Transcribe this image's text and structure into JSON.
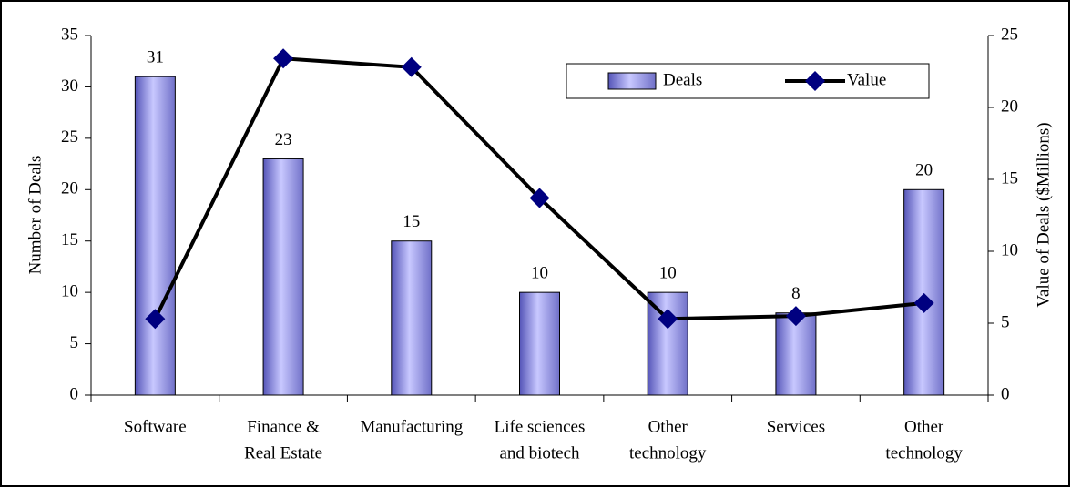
{
  "chart_data": {
    "type": "bar-line",
    "categories": [
      [
        "Software"
      ],
      [
        "Finance &",
        "Real Estate"
      ],
      [
        "Manufacturing"
      ],
      [
        "Life sciences",
        "and biotech"
      ],
      [
        "Other",
        "technology"
      ],
      [
        "Services"
      ],
      [
        "Other",
        "technology"
      ]
    ],
    "series": [
      {
        "name": "Deals",
        "color": "#9999ee",
        "type": "bar",
        "values": [
          31,
          23,
          15,
          10,
          10,
          8,
          20
        ]
      },
      {
        "name": "Value",
        "color": "#000080",
        "type": "line",
        "axis": "y2",
        "values": [
          5.3,
          23.4,
          22.8,
          13.7,
          5.3,
          5.5,
          6.4
        ]
      }
    ],
    "ylabel": "Number of Deals",
    "y2label": "Value of Deals ($Millions)",
    "ylim": [
      0,
      35
    ],
    "yticks": [
      0,
      5,
      10,
      15,
      20,
      25,
      30,
      35
    ],
    "y2lim": [
      0,
      25
    ],
    "y2ticks": [
      0,
      5,
      10,
      15,
      20,
      25
    ],
    "legend": "upper right"
  }
}
